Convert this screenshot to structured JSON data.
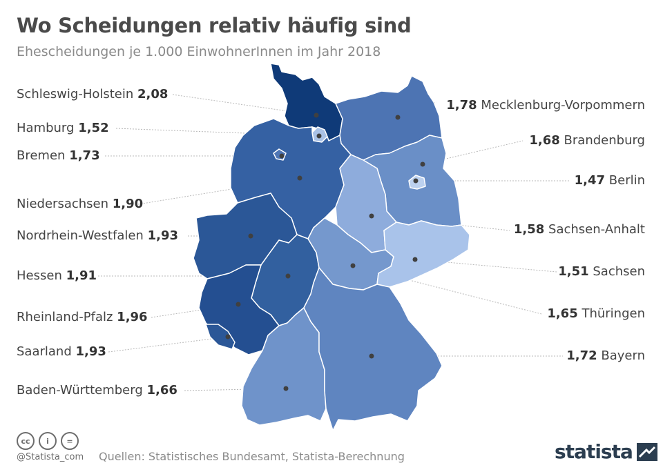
{
  "header": {
    "title": "Wo Scheidungen relativ häufig sind",
    "subtitle": "Ehescheidungen je 1.000 EinwohnerInnen im Jahr 2018"
  },
  "states": [
    {
      "id": "sh",
      "name": "Schleswig-Holstein",
      "value": "2,08",
      "color": "#0f3a78"
    },
    {
      "id": "hh",
      "name": "Hamburg",
      "value": "1,52",
      "color": "#a9c1e6"
    },
    {
      "id": "hb",
      "name": "Bremen",
      "value": "1,73",
      "color": "#4f76b5"
    },
    {
      "id": "ni",
      "name": "Niedersachsen",
      "value": "1,90",
      "color": "#3561a3"
    },
    {
      "id": "nrw",
      "name": "Nordrhein-Westfalen",
      "value": "1,93",
      "color": "#2b5797"
    },
    {
      "id": "he",
      "name": "Hessen",
      "value": "1,91",
      "color": "#32609f"
    },
    {
      "id": "rp",
      "name": "Rheinland-Pfalz",
      "value": "1,96",
      "color": "#244f91"
    },
    {
      "id": "sl",
      "name": "Saarland",
      "value": "1,93",
      "color": "#2b5797"
    },
    {
      "id": "bw",
      "name": "Baden-Württemberg",
      "value": "1,66",
      "color": "#6f93ca"
    },
    {
      "id": "mv",
      "name": "Mecklenburg-Vorpommern",
      "value": "1,78",
      "color": "#4d74b3"
    },
    {
      "id": "bb",
      "name": "Brandenburg",
      "value": "1,68",
      "color": "#6a8fc7"
    },
    {
      "id": "be",
      "name": "Berlin",
      "value": "1,47",
      "color": "#bcd1ef"
    },
    {
      "id": "st",
      "name": "Sachsen-Anhalt",
      "value": "1,58",
      "color": "#8eacdc"
    },
    {
      "id": "sn",
      "name": "Sachsen",
      "value": "1,51",
      "color": "#a9c3ea"
    },
    {
      "id": "th",
      "name": "Thüringen",
      "value": "1,65",
      "color": "#7598cd"
    },
    {
      "id": "by",
      "name": "Bayern",
      "value": "1,72",
      "color": "#5f85c0"
    }
  ],
  "footer": {
    "cc_icons": [
      "cc-icon",
      "by-icon",
      "nd-icon"
    ],
    "cc_glyphs": [
      "cc",
      "i",
      "="
    ],
    "handle": "@Statista_com",
    "source": "Quellen: Statistisches Bundesamt, Statista-Berechnung",
    "logo": "statista"
  }
}
